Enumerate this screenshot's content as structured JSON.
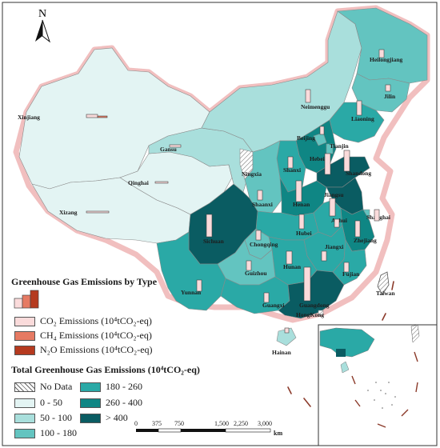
{
  "north_arrow": {
    "label": "N"
  },
  "provinces": [
    {
      "name": "Xinjiang",
      "class": "0-50"
    },
    {
      "name": "Xizang",
      "class": "0-50"
    },
    {
      "name": "Qinghai",
      "class": "0-50"
    },
    {
      "name": "Gansu",
      "class": "50-100"
    },
    {
      "name": "Neimenggu",
      "class": "50-100"
    },
    {
      "name": "Heilongjiang",
      "class": "100-180"
    },
    {
      "name": "Jilin",
      "class": "100-180"
    },
    {
      "name": "Liaoning",
      "class": "180-260"
    },
    {
      "name": "Beijing",
      "class": "100-180"
    },
    {
      "name": "Tianjin",
      "class": "100-180"
    },
    {
      "name": "Hebei",
      "class": "260-400"
    },
    {
      "name": "Shanxi",
      "class": "180-260"
    },
    {
      "name": "Shandong",
      "class": ">400"
    },
    {
      "name": "Ningxia",
      "class": "No Data"
    },
    {
      "name": "Shaanxi",
      "class": "100-180"
    },
    {
      "name": "Henan",
      "class": "260-400"
    },
    {
      "name": "Jiangsu",
      "class": ">400"
    },
    {
      "name": "Anhui",
      "class": "180-260"
    },
    {
      "name": "Shanghai",
      "class": "100-180"
    },
    {
      "name": "Sichuan",
      "class": ">400"
    },
    {
      "name": "Chongqing",
      "class": "100-180"
    },
    {
      "name": "Hubei",
      "class": "180-260"
    },
    {
      "name": "Zhejiang",
      "class": "260-400"
    },
    {
      "name": "Jiangxi",
      "class": "180-260"
    },
    {
      "name": "Hunan",
      "class": "180-260"
    },
    {
      "name": "Guizhou",
      "class": "100-180"
    },
    {
      "name": "Yunnan",
      "class": "180-260"
    },
    {
      "name": "Guangxi",
      "class": "180-260"
    },
    {
      "name": "Guangdong",
      "class": ">400"
    },
    {
      "name": "Fujian",
      "class": "180-260"
    },
    {
      "name": "HongKong",
      "class": "No Data"
    },
    {
      "name": "Hainan",
      "class": "50-100"
    },
    {
      "name": "Taiwan",
      "class": "No Data"
    }
  ],
  "legend_type": {
    "title": "Greenhouse Gas Emissions by Type",
    "items": [
      {
        "label": "CO₂ Emissions (10⁴tCO₂-eq)",
        "color": "#fadbdb"
      },
      {
        "label": "CH₄ Emissions (10⁴tCO₂-eq)",
        "color": "#e67a63"
      },
      {
        "label": "N₂O Emissions (10⁴tCO₂-eq)",
        "color": "#b53a1f"
      }
    ]
  },
  "legend_total": {
    "title": "Total Greenhouse Gas Emissions (10⁴tCO₂-eq)",
    "items": [
      {
        "label": "No Data",
        "color": "hatch"
      },
      {
        "label": "0 - 50",
        "color": "#e3f4f3"
      },
      {
        "label": "50 - 100",
        "color": "#a9dfdc"
      },
      {
        "label": "100 - 180",
        "color": "#63c4c0"
      },
      {
        "label": "180 - 260",
        "color": "#2aa9a6"
      },
      {
        "label": "260 - 400",
        "color": "#0f8684"
      },
      {
        "label": "> 400",
        "color": "#0a5c62"
      }
    ]
  },
  "scale_bar": {
    "ticks": [
      "0",
      "375",
      "750",
      "1,500",
      "2,250",
      "3,000"
    ],
    "unit": "km"
  }
}
